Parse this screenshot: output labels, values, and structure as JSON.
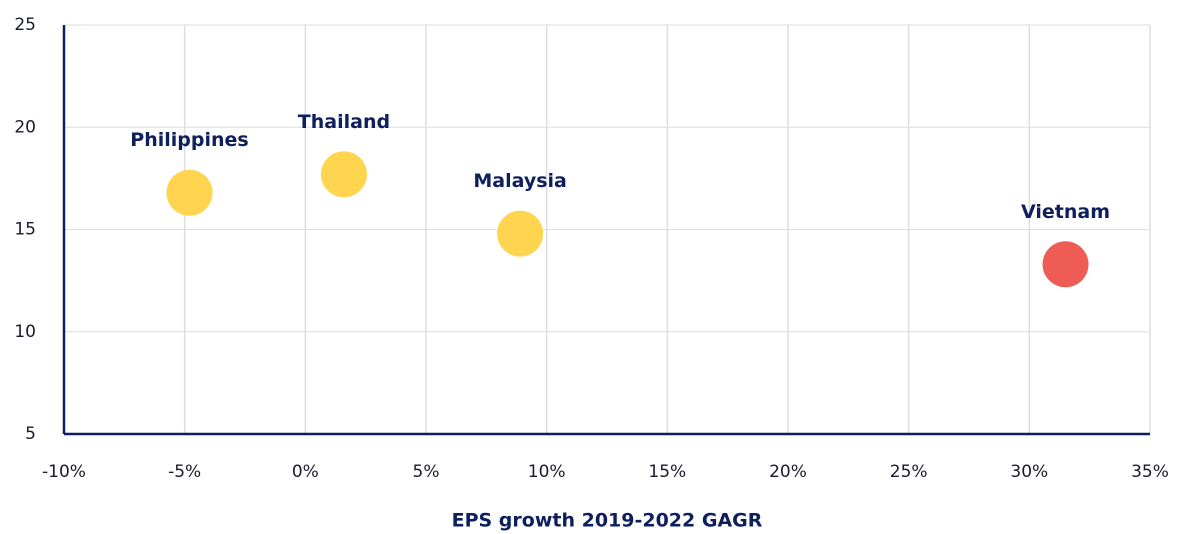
{
  "chart_data": {
    "type": "scatter",
    "x_label": "EPS growth 2019-2022 GAGR",
    "series": [
      {
        "labels": [
          "Philippines",
          "Thailand",
          "Malaysia",
          "Vietnam"
        ],
        "x": [
          -4.8,
          1.6,
          8.9,
          31.5
        ],
        "values": [
          16.8,
          17.7,
          14.8,
          13.3
        ],
        "colors": [
          "#ffd54f",
          "#ffd54f",
          "#ffd54f",
          "#ef5b55"
        ]
      }
    ],
    "xlim": [
      -10,
      35
    ],
    "xticks": [
      {
        "value": -10,
        "label": "-10%"
      },
      {
        "value": -5,
        "label": "-5%"
      },
      {
        "value": 0,
        "label": "0%"
      },
      {
        "value": 5,
        "label": "5%"
      },
      {
        "value": 10,
        "label": "10%"
      },
      {
        "value": 15,
        "label": "15%"
      },
      {
        "value": 20,
        "label": "20%"
      },
      {
        "value": 25,
        "label": "25%"
      },
      {
        "value": 30,
        "label": "30%"
      },
      {
        "value": 35,
        "label": "35%"
      }
    ],
    "ylim": [
      5,
      25
    ],
    "yticks": [
      5,
      10,
      15,
      20,
      25
    ],
    "grid": true
  }
}
